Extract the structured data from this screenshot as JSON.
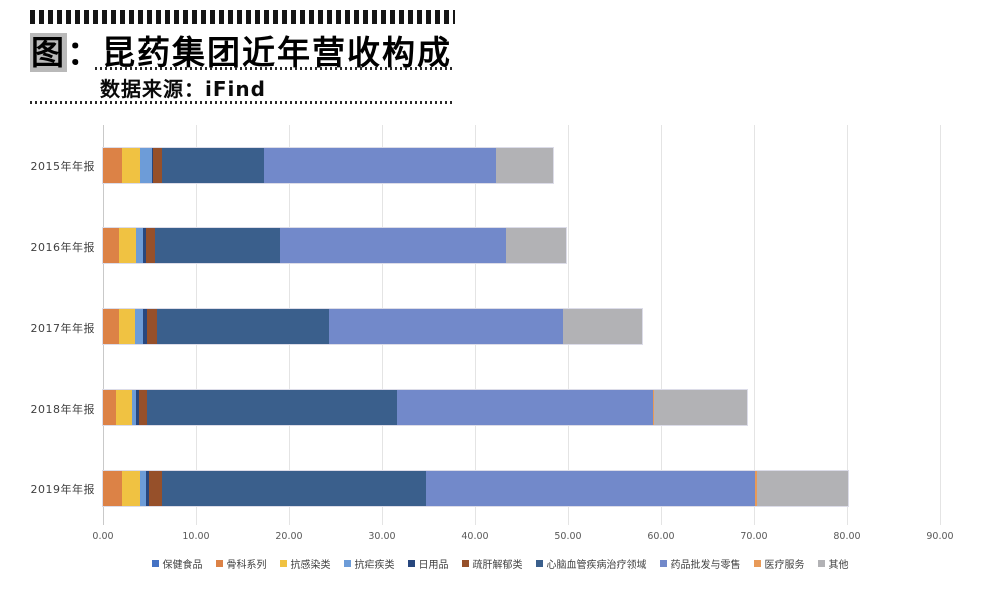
{
  "header": {
    "prefix": "图",
    "colon": "：",
    "title": "昆药集团近年营收构成",
    "source": "数据来源：iFind"
  },
  "chart_data": {
    "type": "bar",
    "orientation": "horizontal",
    "stacked": true,
    "grid": true,
    "legend_position": "bottom",
    "xlim": [
      0,
      90
    ],
    "x_ticks": [
      "0.00",
      "10.00",
      "20.00",
      "30.00",
      "40.00",
      "50.00",
      "60.00",
      "70.00",
      "80.00",
      "90.00"
    ],
    "categories": [
      "2015年年报",
      "2016年年报",
      "2017年年报",
      "2018年年报",
      "2019年年报"
    ],
    "series": [
      {
        "name": "保健食品",
        "color": "#4472C4",
        "values": [
          0,
          0,
          0,
          0,
          0
        ]
      },
      {
        "name": "骨科系列",
        "color": "#DC8246",
        "values": [
          2.0,
          1.7,
          1.7,
          1.4,
          2.0
        ]
      },
      {
        "name": "抗感染类",
        "color": "#F0C242",
        "values": [
          2.0,
          1.9,
          1.7,
          1.7,
          2.0
        ]
      },
      {
        "name": "抗疟疾类",
        "color": "#6D9CD8",
        "values": [
          1.3,
          0.7,
          0.9,
          0.5,
          0.6
        ]
      },
      {
        "name": "日用品",
        "color": "#28477E",
        "values": [
          0.1,
          0.3,
          0.4,
          0.3,
          0.35
        ]
      },
      {
        "name": "疏肝解郁类",
        "color": "#96502A",
        "values": [
          1.0,
          1.0,
          1.1,
          0.8,
          1.35
        ]
      },
      {
        "name": "心脑血管疾病治疗领域",
        "color": "#3A5F8C",
        "values": [
          10.9,
          13.4,
          18.5,
          26.9,
          28.4
        ]
      },
      {
        "name": "药品批发与零售",
        "color": "#7289CA",
        "values": [
          25.0,
          24.3,
          25.2,
          27.5,
          35.4
        ]
      },
      {
        "name": "医疗服务",
        "color": "#E89A58",
        "values": [
          0,
          0,
          0,
          0.2,
          0.25
        ]
      },
      {
        "name": "其他",
        "color": "#B2B2B5",
        "values": [
          6.1,
          6.5,
          8.5,
          9.9,
          9.75
        ]
      }
    ]
  }
}
